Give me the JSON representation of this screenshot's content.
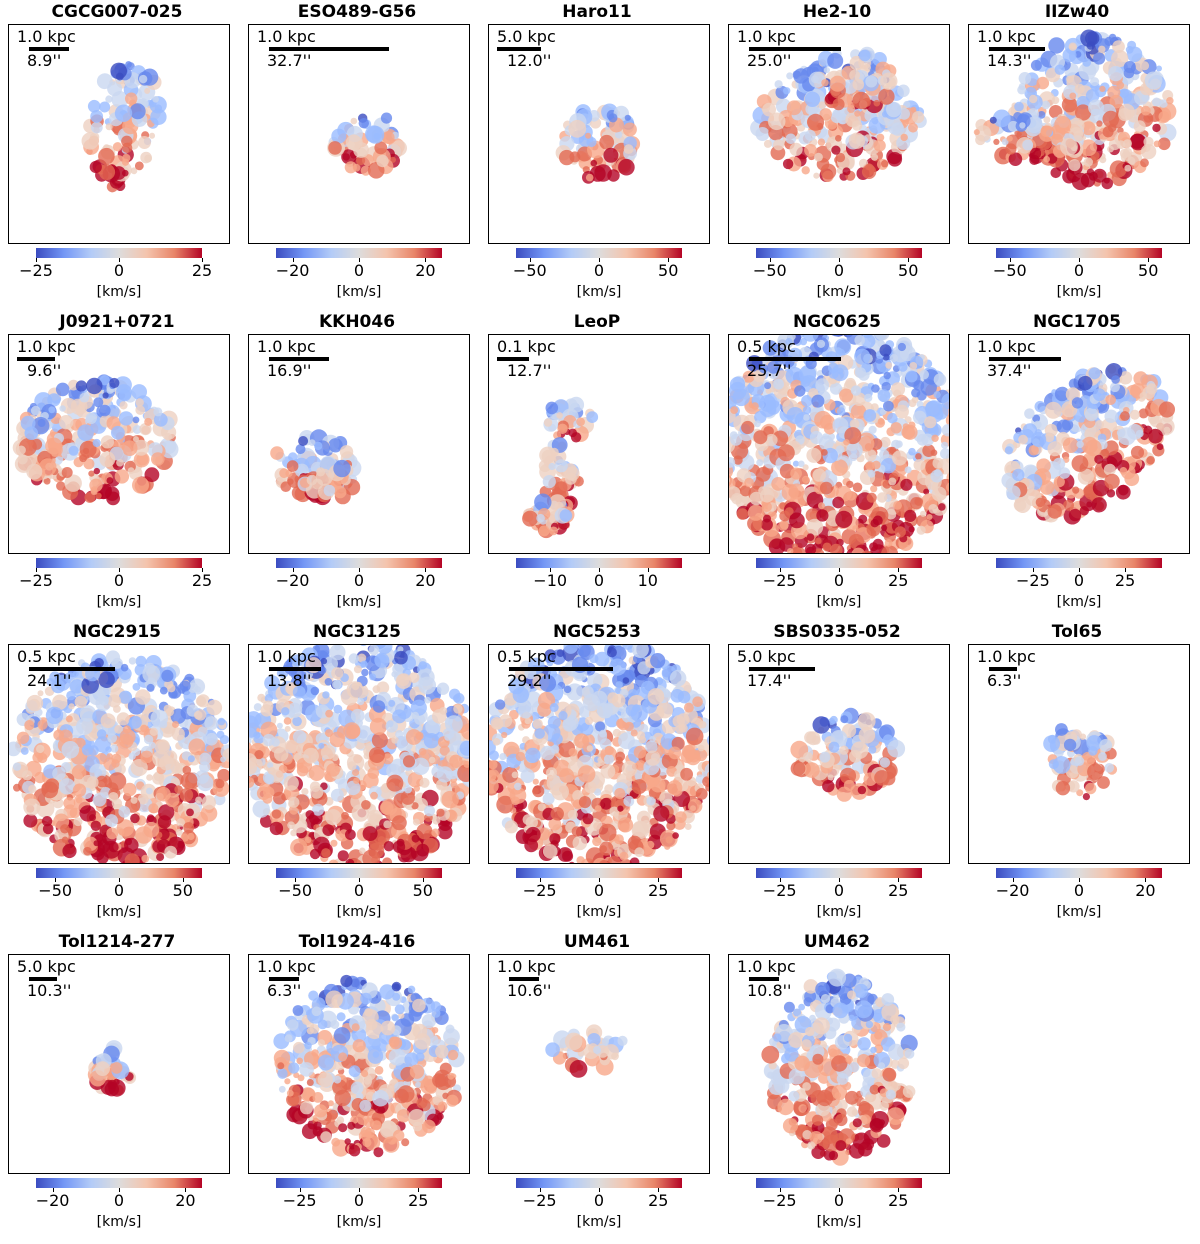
{
  "figure": {
    "colormap": "coolwarm",
    "colors": {
      "low": "#3b4cc0",
      "mid": "#dddcdc",
      "high": "#b40426"
    }
  },
  "chart_data": [
    {
      "type": "heatmap",
      "title": "CGCG007-025",
      "scale_kpc": "1.0 kpc",
      "scale_arcsec": "8.9''",
      "vmin": -25,
      "vmax": 25,
      "ticks": [
        -25,
        0,
        25
      ],
      "tick_labels": [
        "−25",
        "0",
        "25"
      ],
      "unit": "[km/s]"
    },
    {
      "type": "heatmap",
      "title": "ESO489-G56",
      "scale_kpc": "1.0 kpc",
      "scale_arcsec": "32.7''",
      "vmin": -25,
      "vmax": 25,
      "ticks": [
        -20,
        0,
        20
      ],
      "tick_labels": [
        "−20",
        "0",
        "20"
      ],
      "unit": "[km/s]"
    },
    {
      "type": "heatmap",
      "title": "Haro11",
      "scale_kpc": "5.0 kpc",
      "scale_arcsec": "12.0''",
      "vmin": -60,
      "vmax": 60,
      "ticks": [
        -50,
        0,
        50
      ],
      "tick_labels": [
        "−50",
        "0",
        "50"
      ],
      "unit": "[km/s]"
    },
    {
      "type": "heatmap",
      "title": "He2-10",
      "scale_kpc": "1.0 kpc",
      "scale_arcsec": "25.0''",
      "vmin": -60,
      "vmax": 60,
      "ticks": [
        -50,
        0,
        50
      ],
      "tick_labels": [
        "−50",
        "0",
        "50"
      ],
      "unit": "[km/s]"
    },
    {
      "type": "heatmap",
      "title": "IIZw40",
      "scale_kpc": "1.0 kpc",
      "scale_arcsec": "14.3''",
      "vmin": -60,
      "vmax": 60,
      "ticks": [
        -50,
        0,
        50
      ],
      "tick_labels": [
        "−50",
        "0",
        "50"
      ],
      "unit": "[km/s]"
    },
    {
      "type": "heatmap",
      "title": "J0921+0721",
      "scale_kpc": "1.0 kpc",
      "scale_arcsec": "9.6''",
      "vmin": -25,
      "vmax": 25,
      "ticks": [
        -25,
        0,
        25
      ],
      "tick_labels": [
        "−25",
        "0",
        "25"
      ],
      "unit": "[km/s]"
    },
    {
      "type": "heatmap",
      "title": "KKH046",
      "scale_kpc": "1.0 kpc",
      "scale_arcsec": "16.9''",
      "vmin": -25,
      "vmax": 25,
      "ticks": [
        -20,
        0,
        20
      ],
      "tick_labels": [
        "−20",
        "0",
        "20"
      ],
      "unit": "[km/s]"
    },
    {
      "type": "heatmap",
      "title": "LeoP",
      "scale_kpc": "0.1 kpc",
      "scale_arcsec": "12.7''",
      "vmin": -17,
      "vmax": 17,
      "ticks": [
        -10,
        0,
        10
      ],
      "tick_labels": [
        "−10",
        "0",
        "10"
      ],
      "unit": "[km/s]"
    },
    {
      "type": "heatmap",
      "title": "NGC0625",
      "scale_kpc": "0.5 kpc",
      "scale_arcsec": "25.7''",
      "vmin": -35,
      "vmax": 35,
      "ticks": [
        -25,
        0,
        25
      ],
      "tick_labels": [
        "−25",
        "0",
        "25"
      ],
      "unit": "[km/s]"
    },
    {
      "type": "heatmap",
      "title": "NGC1705",
      "scale_kpc": "1.0 kpc",
      "scale_arcsec": "37.4''",
      "vmin": -45,
      "vmax": 45,
      "ticks": [
        -25,
        0,
        25
      ],
      "tick_labels": [
        "−25",
        "0",
        "25"
      ],
      "unit": "[km/s]"
    },
    {
      "type": "heatmap",
      "title": "NGC2915",
      "scale_kpc": "0.5 kpc",
      "scale_arcsec": "24.1''",
      "vmin": -65,
      "vmax": 65,
      "ticks": [
        -50,
        0,
        50
      ],
      "tick_labels": [
        "−50",
        "0",
        "50"
      ],
      "unit": "[km/s]"
    },
    {
      "type": "heatmap",
      "title": "NGC3125",
      "scale_kpc": "1.0 kpc",
      "scale_arcsec": "13.8''",
      "vmin": -65,
      "vmax": 65,
      "ticks": [
        -50,
        0,
        50
      ],
      "tick_labels": [
        "−50",
        "0",
        "50"
      ],
      "unit": "[km/s]"
    },
    {
      "type": "heatmap",
      "title": "NGC5253",
      "scale_kpc": "0.5 kpc",
      "scale_arcsec": "29.2''",
      "vmin": -35,
      "vmax": 35,
      "ticks": [
        -25,
        0,
        25
      ],
      "tick_labels": [
        "−25",
        "0",
        "25"
      ],
      "unit": "[km/s]"
    },
    {
      "type": "heatmap",
      "title": "SBS0335-052",
      "scale_kpc": "5.0 kpc",
      "scale_arcsec": "17.4''",
      "vmin": -35,
      "vmax": 35,
      "ticks": [
        -25,
        0,
        25
      ],
      "tick_labels": [
        "−25",
        "0",
        "25"
      ],
      "unit": "[km/s]"
    },
    {
      "type": "heatmap",
      "title": "Tol65",
      "scale_kpc": "1.0 kpc",
      "scale_arcsec": "6.3''",
      "vmin": -25,
      "vmax": 25,
      "ticks": [
        -20,
        0,
        20
      ],
      "tick_labels": [
        "−20",
        "0",
        "20"
      ],
      "unit": "[km/s]"
    },
    {
      "type": "heatmap",
      "title": "Tol1214-277",
      "scale_kpc": "5.0 kpc",
      "scale_arcsec": "10.3''",
      "vmin": -25,
      "vmax": 25,
      "ticks": [
        -20,
        0,
        20
      ],
      "tick_labels": [
        "−20",
        "0",
        "20"
      ],
      "unit": "[km/s]"
    },
    {
      "type": "heatmap",
      "title": "Tol1924-416",
      "scale_kpc": "1.0 kpc",
      "scale_arcsec": "6.3''",
      "vmin": -35,
      "vmax": 35,
      "ticks": [
        -25,
        0,
        25
      ],
      "tick_labels": [
        "−25",
        "0",
        "25"
      ],
      "unit": "[km/s]"
    },
    {
      "type": "heatmap",
      "title": "UM461",
      "scale_kpc": "1.0 kpc",
      "scale_arcsec": "10.6''",
      "vmin": -35,
      "vmax": 35,
      "ticks": [
        -25,
        0,
        25
      ],
      "tick_labels": [
        "−25",
        "0",
        "25"
      ],
      "unit": "[km/s]"
    },
    {
      "type": "heatmap",
      "title": "UM462",
      "scale_kpc": "1.0 kpc",
      "scale_arcsec": "10.8''",
      "vmin": -35,
      "vmax": 35,
      "ticks": [
        -25,
        0,
        25
      ],
      "tick_labels": [
        "−25",
        "0",
        "25"
      ],
      "unit": "[km/s]"
    }
  ]
}
